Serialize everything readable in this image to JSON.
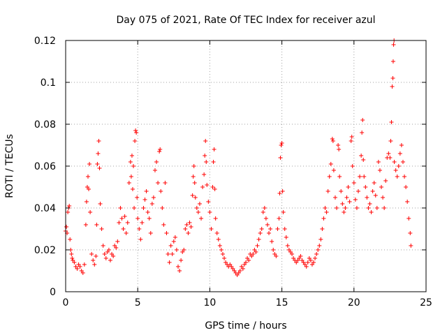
{
  "chart_data": {
    "type": "scatter",
    "title": "Day 075 of 2021, Rate Of TEC Index for receiver azul",
    "xlabel": "GPS time / hours",
    "ylabel": "ROTI / TECUs",
    "xlim": [
      0,
      25
    ],
    "ylim": [
      0,
      0.12
    ],
    "xticks": [
      "0",
      "5",
      "10",
      "15",
      "20",
      "25"
    ],
    "yticks": [
      "0",
      "0.02",
      "0.04",
      "0.06",
      "0.08",
      "0.1",
      "0.12"
    ],
    "grid": true,
    "marker": "+",
    "color": "#ff0000",
    "series": [
      {
        "points": [
          [
            0.0,
            0.029
          ],
          [
            0.05,
            0.031
          ],
          [
            0.1,
            0.028
          ],
          [
            0.15,
            0.038
          ],
          [
            0.2,
            0.04
          ],
          [
            0.25,
            0.041
          ],
          [
            0.3,
            0.025
          ],
          [
            0.35,
            0.02
          ],
          [
            0.4,
            0.018
          ],
          [
            0.45,
            0.016
          ],
          [
            0.5,
            0.015
          ],
          [
            0.6,
            0.014
          ],
          [
            0.7,
            0.012
          ],
          [
            0.8,
            0.011
          ],
          [
            0.9,
            0.013
          ],
          [
            1.0,
            0.012
          ],
          [
            1.1,
            0.01
          ],
          [
            1.2,
            0.009
          ],
          [
            1.3,
            0.013
          ],
          [
            1.4,
            0.032
          ],
          [
            1.45,
            0.043
          ],
          [
            1.5,
            0.05
          ],
          [
            1.55,
            0.055
          ],
          [
            1.6,
            0.049
          ],
          [
            1.65,
            0.061
          ],
          [
            1.7,
            0.038
          ],
          [
            1.8,
            0.018
          ],
          [
            1.9,
            0.015
          ],
          [
            2.0,
            0.013
          ],
          [
            2.1,
            0.017
          ],
          [
            2.15,
            0.032
          ],
          [
            2.2,
            0.061
          ],
          [
            2.25,
            0.066
          ],
          [
            2.3,
            0.072
          ],
          [
            2.35,
            0.059
          ],
          [
            2.4,
            0.042
          ],
          [
            2.5,
            0.03
          ],
          [
            2.6,
            0.022
          ],
          [
            2.7,
            0.018
          ],
          [
            2.8,
            0.016
          ],
          [
            2.9,
            0.019
          ],
          [
            3.0,
            0.02
          ],
          [
            3.1,
            0.015
          ],
          [
            3.2,
            0.018
          ],
          [
            3.3,
            0.017
          ],
          [
            3.4,
            0.022
          ],
          [
            3.5,
            0.021
          ],
          [
            3.6,
            0.024
          ],
          [
            3.7,
            0.033
          ],
          [
            3.8,
            0.04
          ],
          [
            3.9,
            0.035
          ],
          [
            4.0,
            0.03
          ],
          [
            4.1,
            0.036
          ],
          [
            4.2,
            0.028
          ],
          [
            4.3,
            0.033
          ],
          [
            4.4,
            0.052
          ],
          [
            4.5,
            0.062
          ],
          [
            4.55,
            0.055
          ],
          [
            4.6,
            0.065
          ],
          [
            4.65,
            0.049
          ],
          [
            4.7,
            0.06
          ],
          [
            4.75,
            0.04
          ],
          [
            4.8,
            0.072
          ],
          [
            4.85,
            0.077
          ],
          [
            4.9,
            0.076
          ],
          [
            4.95,
            0.045
          ],
          [
            5.0,
            0.035
          ],
          [
            5.1,
            0.03
          ],
          [
            5.2,
            0.025
          ],
          [
            5.3,
            0.033
          ],
          [
            5.4,
            0.04
          ],
          [
            5.5,
            0.044
          ],
          [
            5.6,
            0.048
          ],
          [
            5.7,
            0.038
          ],
          [
            5.8,
            0.035
          ],
          [
            5.9,
            0.028
          ],
          [
            6.0,
            0.042
          ],
          [
            6.1,
            0.045
          ],
          [
            6.2,
            0.058
          ],
          [
            6.3,
            0.062
          ],
          [
            6.4,
            0.052
          ],
          [
            6.5,
            0.067
          ],
          [
            6.55,
            0.068
          ],
          [
            6.6,
            0.048
          ],
          [
            6.7,
            0.04
          ],
          [
            6.8,
            0.032
          ],
          [
            6.9,
            0.052
          ],
          [
            7.0,
            0.028
          ],
          [
            7.1,
            0.018
          ],
          [
            7.2,
            0.014
          ],
          [
            7.3,
            0.022
          ],
          [
            7.4,
            0.018
          ],
          [
            7.5,
            0.024
          ],
          [
            7.6,
            0.026
          ],
          [
            7.7,
            0.02
          ],
          [
            7.8,
            0.012
          ],
          [
            7.9,
            0.01
          ],
          [
            8.0,
            0.015
          ],
          [
            8.1,
            0.019
          ],
          [
            8.2,
            0.02
          ],
          [
            8.3,
            0.03
          ],
          [
            8.4,
            0.032
          ],
          [
            8.5,
            0.028
          ],
          [
            8.6,
            0.033
          ],
          [
            8.7,
            0.031
          ],
          [
            8.8,
            0.046
          ],
          [
            8.85,
            0.055
          ],
          [
            8.9,
            0.06
          ],
          [
            8.95,
            0.052
          ],
          [
            9.0,
            0.045
          ],
          [
            9.1,
            0.04
          ],
          [
            9.2,
            0.038
          ],
          [
            9.3,
            0.042
          ],
          [
            9.4,
            0.035
          ],
          [
            9.5,
            0.05
          ],
          [
            9.6,
            0.056
          ],
          [
            9.65,
            0.065
          ],
          [
            9.7,
            0.072
          ],
          [
            9.75,
            0.062
          ],
          [
            9.8,
            0.051
          ],
          [
            9.9,
            0.043
          ],
          [
            10.0,
            0.038
          ],
          [
            10.1,
            0.03
          ],
          [
            10.2,
            0.05
          ],
          [
            10.25,
            0.062
          ],
          [
            10.3,
            0.068
          ],
          [
            10.35,
            0.049
          ],
          [
            10.4,
            0.035
          ],
          [
            10.5,
            0.028
          ],
          [
            10.6,
            0.025
          ],
          [
            10.7,
            0.022
          ],
          [
            10.8,
            0.02
          ],
          [
            10.9,
            0.018
          ],
          [
            11.0,
            0.016
          ],
          [
            11.1,
            0.014
          ],
          [
            11.2,
            0.013
          ],
          [
            11.3,
            0.012
          ],
          [
            11.4,
            0.013
          ],
          [
            11.5,
            0.012
          ],
          [
            11.6,
            0.011
          ],
          [
            11.7,
            0.01
          ],
          [
            11.8,
            0.009
          ],
          [
            11.9,
            0.008
          ],
          [
            12.0,
            0.009
          ],
          [
            12.1,
            0.01
          ],
          [
            12.2,
            0.012
          ],
          [
            12.3,
            0.011
          ],
          [
            12.4,
            0.013
          ],
          [
            12.5,
            0.014
          ],
          [
            12.6,
            0.016
          ],
          [
            12.7,
            0.015
          ],
          [
            12.8,
            0.018
          ],
          [
            12.9,
            0.017
          ],
          [
            13.0,
            0.018
          ],
          [
            13.1,
            0.02
          ],
          [
            13.2,
            0.019
          ],
          [
            13.3,
            0.022
          ],
          [
            13.4,
            0.025
          ],
          [
            13.5,
            0.028
          ],
          [
            13.6,
            0.03
          ],
          [
            13.7,
            0.038
          ],
          [
            13.8,
            0.04
          ],
          [
            13.9,
            0.035
          ],
          [
            14.0,
            0.032
          ],
          [
            14.1,
            0.028
          ],
          [
            14.2,
            0.03
          ],
          [
            14.3,
            0.024
          ],
          [
            14.4,
            0.02
          ],
          [
            14.5,
            0.018
          ],
          [
            14.6,
            0.017
          ],
          [
            14.7,
            0.03
          ],
          [
            14.8,
            0.035
          ],
          [
            14.85,
            0.047
          ],
          [
            14.9,
            0.064
          ],
          [
            14.95,
            0.07
          ],
          [
            15.0,
            0.071
          ],
          [
            15.05,
            0.048
          ],
          [
            15.1,
            0.038
          ],
          [
            15.2,
            0.03
          ],
          [
            15.3,
            0.026
          ],
          [
            15.4,
            0.022
          ],
          [
            15.5,
            0.02
          ],
          [
            15.6,
            0.019
          ],
          [
            15.7,
            0.018
          ],
          [
            15.8,
            0.016
          ],
          [
            15.9,
            0.015
          ],
          [
            16.0,
            0.014
          ],
          [
            16.1,
            0.015
          ],
          [
            16.2,
            0.016
          ],
          [
            16.3,
            0.017
          ],
          [
            16.4,
            0.015
          ],
          [
            16.5,
            0.014
          ],
          [
            16.6,
            0.013
          ],
          [
            16.7,
            0.012
          ],
          [
            16.8,
            0.014
          ],
          [
            16.9,
            0.016
          ],
          [
            17.0,
            0.015
          ],
          [
            17.1,
            0.013
          ],
          [
            17.2,
            0.014
          ],
          [
            17.3,
            0.016
          ],
          [
            17.4,
            0.018
          ],
          [
            17.5,
            0.02
          ],
          [
            17.6,
            0.022
          ],
          [
            17.7,
            0.025
          ],
          [
            17.8,
            0.03
          ],
          [
            17.9,
            0.035
          ],
          [
            18.0,
            0.04
          ],
          [
            18.1,
            0.038
          ],
          [
            18.2,
            0.048
          ],
          [
            18.3,
            0.055
          ],
          [
            18.4,
            0.061
          ],
          [
            18.5,
            0.073
          ],
          [
            18.55,
            0.072
          ],
          [
            18.6,
            0.058
          ],
          [
            18.7,
            0.045
          ],
          [
            18.8,
            0.04
          ],
          [
            18.9,
            0.07
          ],
          [
            18.95,
            0.068
          ],
          [
            19.0,
            0.055
          ],
          [
            19.1,
            0.048
          ],
          [
            19.2,
            0.042
          ],
          [
            19.3,
            0.038
          ],
          [
            19.4,
            0.04
          ],
          [
            19.5,
            0.045
          ],
          [
            19.6,
            0.05
          ],
          [
            19.7,
            0.043
          ],
          [
            19.8,
            0.072
          ],
          [
            19.85,
            0.074
          ],
          [
            19.9,
            0.06
          ],
          [
            20.0,
            0.052
          ],
          [
            20.1,
            0.044
          ],
          [
            20.2,
            0.04
          ],
          [
            20.3,
            0.048
          ],
          [
            20.4,
            0.055
          ],
          [
            20.5,
            0.065
          ],
          [
            20.55,
            0.076
          ],
          [
            20.6,
            0.082
          ],
          [
            20.65,
            0.063
          ],
          [
            20.7,
            0.055
          ],
          [
            20.8,
            0.05
          ],
          [
            20.9,
            0.045
          ],
          [
            21.0,
            0.04
          ],
          [
            21.1,
            0.042
          ],
          [
            21.2,
            0.038
          ],
          [
            21.3,
            0.048
          ],
          [
            21.4,
            0.052
          ],
          [
            21.5,
            0.046
          ],
          [
            21.6,
            0.04
          ],
          [
            21.7,
            0.062
          ],
          [
            21.8,
            0.058
          ],
          [
            21.9,
            0.05
          ],
          [
            22.0,
            0.045
          ],
          [
            22.1,
            0.04
          ],
          [
            22.2,
            0.053
          ],
          [
            22.3,
            0.064
          ],
          [
            22.4,
            0.066
          ],
          [
            22.5,
            0.064
          ],
          [
            22.55,
            0.072
          ],
          [
            22.6,
            0.081
          ],
          [
            22.65,
            0.098
          ],
          [
            22.7,
            0.102
          ],
          [
            22.72,
            0.11
          ],
          [
            22.75,
            0.118
          ],
          [
            22.78,
            0.12
          ],
          [
            22.8,
            0.062
          ],
          [
            22.9,
            0.058
          ],
          [
            23.0,
            0.055
          ],
          [
            23.1,
            0.06
          ],
          [
            23.2,
            0.066
          ],
          [
            23.3,
            0.07
          ],
          [
            23.4,
            0.062
          ],
          [
            23.5,
            0.055
          ],
          [
            23.6,
            0.05
          ],
          [
            23.7,
            0.043
          ],
          [
            23.8,
            0.035
          ],
          [
            23.9,
            0.028
          ],
          [
            23.95,
            0.022
          ]
        ]
      }
    ]
  }
}
